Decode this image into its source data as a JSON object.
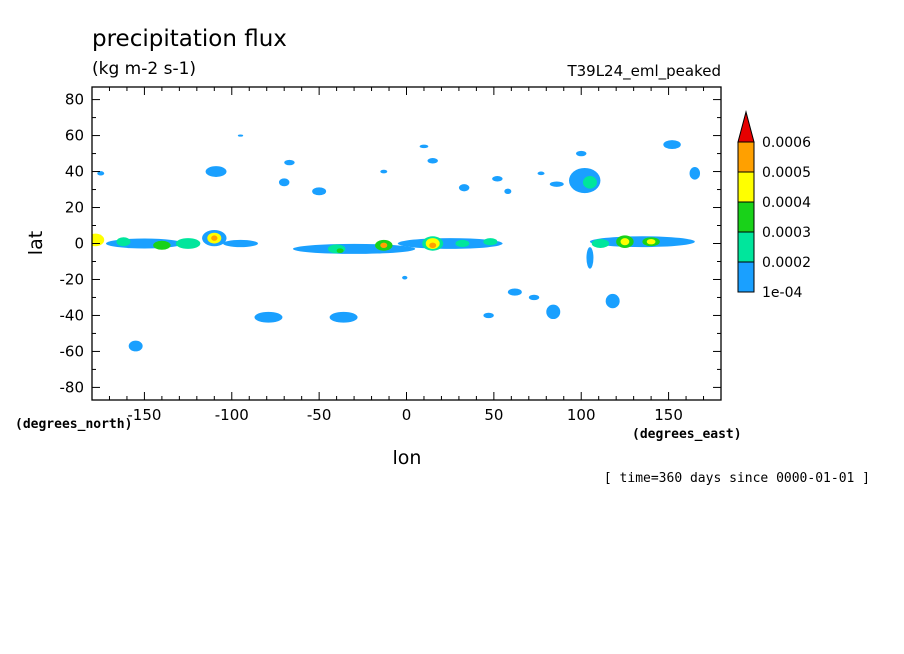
{
  "chart_data": {
    "type": "heatmap",
    "title": "precipitation flux",
    "units": "(kg m-2 s-1)",
    "run_label": "T39L24_eml_peaked",
    "xlabel": "lon",
    "ylabel": "lat",
    "x_units": "(degrees_east)",
    "y_units": "(degrees_north)",
    "time_note": "[ time=360 days since 0000-01-01 ]",
    "xlim": [
      -180,
      180
    ],
    "ylim": [
      -87,
      87
    ],
    "xticks": [
      -150,
      -100,
      -50,
      0,
      50,
      100,
      150
    ],
    "yticks": [
      80,
      60,
      40,
      20,
      0,
      -20,
      -40,
      -60,
      -80
    ],
    "xtick_labels": [
      "-150",
      "-100",
      "-50",
      "0",
      "50",
      "100",
      "150"
    ],
    "ytick_labels": [
      "80",
      "60",
      "40",
      "20",
      "0",
      "-20",
      "-40",
      "-60",
      "-80"
    ],
    "grid": false,
    "colorbar": {
      "levels": [
        0.0001,
        0.0002,
        0.0003,
        0.0004,
        0.0005,
        0.0006
      ],
      "tick_labels": [
        "1e-04",
        "0.0002",
        "0.0003",
        "0.0004",
        "0.0005",
        "0.0006"
      ],
      "colors": [
        "#1aa0ff",
        "#00e69c",
        "#19d219",
        "#ffff00",
        "#ffa000",
        "#e60000"
      ],
      "extend": "max"
    },
    "features": [
      {
        "lon": -178,
        "lat": 2,
        "rx": 5,
        "ry": 3.5,
        "level": 4
      },
      {
        "lon": -150,
        "lat": 0,
        "rx": 22,
        "ry": 2.8,
        "level": 1
      },
      {
        "lon": -162,
        "lat": 1,
        "rx": 4,
        "ry": 2.5,
        "level": 2
      },
      {
        "lon": -140,
        "lat": -1,
        "rx": 5,
        "ry": 2.5,
        "level": 3
      },
      {
        "lon": -125,
        "lat": 0,
        "rx": 7,
        "ry": 3,
        "level": 2
      },
      {
        "lon": -110,
        "lat": 3,
        "rx": 7,
        "ry": 4.5,
        "level": 1
      },
      {
        "lon": -110,
        "lat": 3,
        "rx": 4,
        "ry": 3,
        "level": 4
      },
      {
        "lon": -110,
        "lat": 3,
        "rx": 1.8,
        "ry": 1.5,
        "level": 5
      },
      {
        "lon": -95,
        "lat": 0,
        "rx": 10,
        "ry": 2,
        "level": 1
      },
      {
        "lon": -30,
        "lat": -3,
        "rx": 35,
        "ry": 2.8,
        "level": 1
      },
      {
        "lon": -40,
        "lat": -3,
        "rx": 5,
        "ry": 2.5,
        "level": 2
      },
      {
        "lon": -38,
        "lat": -4,
        "rx": 2,
        "ry": 1.3,
        "level": 3
      },
      {
        "lon": -13,
        "lat": -1,
        "rx": 5,
        "ry": 3,
        "level": 3
      },
      {
        "lon": -13,
        "lat": -1,
        "rx": 2,
        "ry": 1.5,
        "level": 5
      },
      {
        "lon": 25,
        "lat": 0,
        "rx": 30,
        "ry": 3,
        "level": 1
      },
      {
        "lon": 15,
        "lat": 0,
        "rx": 6,
        "ry": 4,
        "level": 2
      },
      {
        "lon": 15,
        "lat": 0,
        "rx": 4,
        "ry": 3,
        "level": 4
      },
      {
        "lon": 15,
        "lat": -1,
        "rx": 2,
        "ry": 1.5,
        "level": 5
      },
      {
        "lon": 32,
        "lat": 0,
        "rx": 4,
        "ry": 2,
        "level": 2
      },
      {
        "lon": 48,
        "lat": 1,
        "rx": 4,
        "ry": 2,
        "level": 2
      },
      {
        "lon": 135,
        "lat": 1,
        "rx": 30,
        "ry": 3,
        "level": 1
      },
      {
        "lon": 111,
        "lat": 0,
        "rx": 5,
        "ry": 2.5,
        "level": 2
      },
      {
        "lon": 125,
        "lat": 1,
        "rx": 5,
        "ry": 3.5,
        "level": 3
      },
      {
        "lon": 125,
        "lat": 1,
        "rx": 2.5,
        "ry": 2,
        "level": 4
      },
      {
        "lon": 140,
        "lat": 1,
        "rx": 5,
        "ry": 2.5,
        "level": 3
      },
      {
        "lon": 140,
        "lat": 1,
        "rx": 2.5,
        "ry": 1.5,
        "level": 4
      },
      {
        "lon": 105,
        "lat": -8,
        "rx": 2,
        "ry": 6,
        "level": 1
      },
      {
        "lon": -109,
        "lat": 40,
        "rx": 6,
        "ry": 3,
        "level": 1
      },
      {
        "lon": -67,
        "lat": 45,
        "rx": 3,
        "ry": 1.5,
        "level": 1
      },
      {
        "lon": -70,
        "lat": 34,
        "rx": 3,
        "ry": 2.2,
        "level": 1
      },
      {
        "lon": -50,
        "lat": 29,
        "rx": 4,
        "ry": 2.2,
        "level": 1
      },
      {
        "lon": -175,
        "lat": 39,
        "rx": 2,
        "ry": 1.2,
        "level": 1
      },
      {
        "lon": -95,
        "lat": 60,
        "rx": 1.5,
        "ry": 0.6,
        "level": 1
      },
      {
        "lon": 10,
        "lat": 54,
        "rx": 2.5,
        "ry": 1,
        "level": 1
      },
      {
        "lon": 15,
        "lat": 46,
        "rx": 3,
        "ry": 1.5,
        "level": 1
      },
      {
        "lon": -13,
        "lat": 40,
        "rx": 2,
        "ry": 1,
        "level": 1
      },
      {
        "lon": 33,
        "lat": 31,
        "rx": 3,
        "ry": 2,
        "level": 1
      },
      {
        "lon": 52,
        "lat": 36,
        "rx": 3,
        "ry": 1.5,
        "level": 1
      },
      {
        "lon": 58,
        "lat": 29,
        "rx": 2,
        "ry": 1.5,
        "level": 1
      },
      {
        "lon": 77,
        "lat": 39,
        "rx": 2,
        "ry": 1,
        "level": 1
      },
      {
        "lon": 86,
        "lat": 33,
        "rx": 4,
        "ry": 1.5,
        "level": 1
      },
      {
        "lon": 102,
        "lat": 35,
        "rx": 9,
        "ry": 7,
        "level": 1
      },
      {
        "lon": 105,
        "lat": 34,
        "rx": 4,
        "ry": 3.5,
        "level": 2
      },
      {
        "lon": 100,
        "lat": 50,
        "rx": 3,
        "ry": 1.5,
        "level": 1
      },
      {
        "lon": 152,
        "lat": 55,
        "rx": 5,
        "ry": 2.5,
        "level": 1
      },
      {
        "lon": 165,
        "lat": 39,
        "rx": 3,
        "ry": 3.5,
        "level": 1
      },
      {
        "lon": -155,
        "lat": -57,
        "rx": 4,
        "ry": 3,
        "level": 1
      },
      {
        "lon": -79,
        "lat": -41,
        "rx": 8,
        "ry": 3,
        "level": 1
      },
      {
        "lon": -36,
        "lat": -41,
        "rx": 8,
        "ry": 3,
        "level": 1
      },
      {
        "lon": 47,
        "lat": -40,
        "rx": 3,
        "ry": 1.5,
        "level": 1
      },
      {
        "lon": 62,
        "lat": -27,
        "rx": 4,
        "ry": 2,
        "level": 1
      },
      {
        "lon": 73,
        "lat": -30,
        "rx": 3,
        "ry": 1.5,
        "level": 1
      },
      {
        "lon": 84,
        "lat": -38,
        "rx": 4,
        "ry": 4,
        "level": 1
      },
      {
        "lon": 118,
        "lat": -32,
        "rx": 4,
        "ry": 4,
        "level": 1
      },
      {
        "lon": -1,
        "lat": -19,
        "rx": 1.5,
        "ry": 1,
        "level": 1
      }
    ]
  }
}
